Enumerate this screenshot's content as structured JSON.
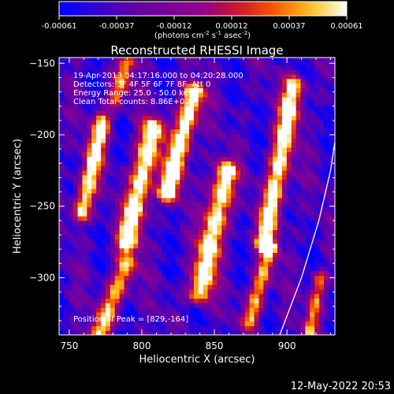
{
  "chart_data": {
    "type": "heatmap",
    "title": "Reconstructed RHESSI Image",
    "xlabel": "Heliocentric X (arcsec)",
    "ylabel": "Heliocentric Y (arcsec)",
    "xlim": [
      743,
      933
    ],
    "ylim": [
      -340,
      -146
    ],
    "x_ticks": [
      750,
      800,
      850,
      900
    ],
    "y_ticks": [
      -150,
      -200,
      -250,
      -300
    ],
    "colorbar": {
      "range": [
        -0.00061,
        0.00061
      ],
      "ticks": [
        "-0.00061",
        "-0.00037",
        "-0.00012",
        "0.00012",
        "0.00037",
        "0.00061"
      ],
      "unit_text": "(photons cm",
      "unit_sup1": "-2",
      "unit_mid1": " s",
      "unit_sup2": "-1",
      "unit_mid2": " asec",
      "unit_sup3": "-2",
      "unit_end": ")"
    },
    "annotations": [
      "19-Apr-2013 04:17:16.000 to 04:20:28.000",
      "Detectors: 3F 4F 5F 6F 7F 8F, Att 0",
      "Energy Range: 25.0 - 50.0 keV",
      "Clean      Total counts: 8.86E+03"
    ],
    "peak_label": "Position of Peak = [829,-164]",
    "peak": [
      829,
      -164
    ],
    "limb_points": [
      [
        895,
        -340
      ],
      [
        910,
        -300
      ],
      [
        922,
        -260
      ],
      [
        930,
        -225
      ],
      [
        933,
        -205
      ]
    ],
    "ridges": [
      {
        "x0": 773,
        "y0": -190,
        "x1": 758,
        "y1": -255,
        "width": 9,
        "peak": 0.85
      },
      {
        "x0": 808,
        "y0": -195,
        "x1": 790,
        "y1": -275,
        "width": 11,
        "peak": 0.95
      },
      {
        "x0": 836,
        "y0": -170,
        "x1": 818,
        "y1": -240,
        "width": 10,
        "peak": 1.0
      },
      {
        "x0": 858,
        "y0": -225,
        "x1": 840,
        "y1": -310,
        "width": 11,
        "peak": 0.95
      },
      {
        "x0": 905,
        "y0": -165,
        "x1": 885,
        "y1": -275,
        "width": 10,
        "peak": 0.9
      },
      {
        "x0": 888,
        "y0": -280,
        "x1": 875,
        "y1": -330,
        "width": 8,
        "peak": 0.7
      },
      {
        "x0": 790,
        "y0": -150,
        "x1": 782,
        "y1": -175,
        "width": 8,
        "peak": 0.65
      },
      {
        "x0": 790,
        "y0": -290,
        "x1": 770,
        "y1": -340,
        "width": 10,
        "peak": 0.7
      },
      {
        "x0": 923,
        "y0": -300,
        "x1": 915,
        "y1": -340,
        "width": 7,
        "peak": 0.6
      }
    ]
  },
  "footer": {
    "timestamp": "12-May-2022 20:53"
  }
}
